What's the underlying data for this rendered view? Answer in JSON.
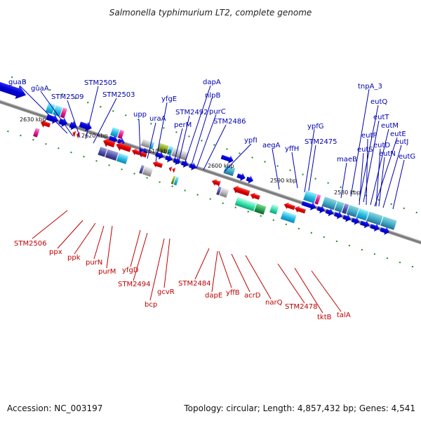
{
  "title": "Salmonella typhimurium LT2, complete genome",
  "accession_label": "Accession: NC_003197",
  "topology_label": "Topology: circular; Length: 4,857,432 bp; Genes: 4,541",
  "colors": {
    "forward": "#0000b0",
    "reverse": "#c00000",
    "backbone": "#777777",
    "tick": "#1a8a1a",
    "cyan": "#33c5e8",
    "teal": "#36b4b8",
    "magenta": "#e01b8c",
    "mint": "#2fe0a8",
    "green": "#1f9a4a",
    "purple": "#5050a8",
    "olive": "#7e9a22",
    "gray": "#b4b4b4"
  },
  "scale_labels": [
    "2630 kbp",
    "2620 kbp",
    "2610 kbp",
    "2600 kbp",
    "2590 kbp",
    "2580 kbp"
  ],
  "forward_genes": [
    "guaB",
    "guaA",
    "STM2509",
    "STM2505",
    "STM2503",
    "upp",
    "uraA",
    "yfgE",
    "perM",
    "STM2492",
    "dapA",
    "nlpB",
    "purC",
    "STM2486",
    "ypfI",
    "aegA",
    "yffH",
    "ypfG",
    "STM2475",
    "tnpA_3",
    "eutQ",
    "eutT",
    "eutP",
    "eutM",
    "eutS",
    "eutE",
    "eutD",
    "eutJ",
    "eutN",
    "eutG",
    "maeB"
  ],
  "reverse_genes": [
    "STM2506",
    "ppx",
    "ppk",
    "purN",
    "purM",
    "yfgD",
    "STM2494",
    "bcp",
    "gcvR",
    "STM2484",
    "dapE",
    "yffB",
    "acrD",
    "narQ",
    "STM2478",
    "tktB",
    "talA"
  ]
}
